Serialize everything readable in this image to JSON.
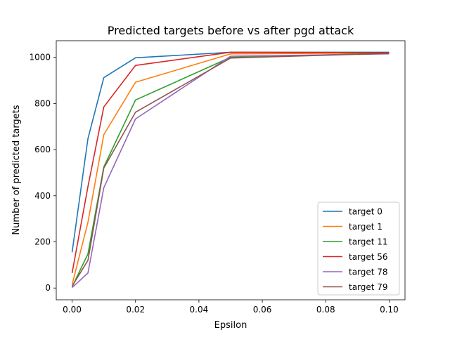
{
  "chart_data": {
    "type": "line",
    "title": "Predicted targets before vs after pgd attack",
    "xlabel": "Epsilon",
    "ylabel": "Number of predicted targets",
    "xlim": [
      -0.005,
      0.105
    ],
    "ylim": [
      -51,
      1072
    ],
    "xticks": [
      0.0,
      0.02,
      0.04,
      0.06,
      0.08,
      0.1
    ],
    "xtick_labels": [
      "0.00",
      "0.02",
      "0.04",
      "0.06",
      "0.08",
      "0.10"
    ],
    "yticks": [
      0,
      200,
      400,
      600,
      800,
      1000
    ],
    "ytick_labels": [
      "0",
      "200",
      "400",
      "600",
      "800",
      "1000"
    ],
    "grid": false,
    "legend_position": "bottom-right",
    "x": [
      0.0,
      0.005,
      0.01,
      0.02,
      0.05,
      0.1
    ],
    "series": [
      {
        "name": "target 0",
        "color": "#1f77b4",
        "values": [
          155,
          648,
          912,
          998,
          1022,
          1022
        ]
      },
      {
        "name": "target 1",
        "color": "#ff7f0e",
        "values": [
          15,
          285,
          665,
          892,
          1015,
          1019
        ]
      },
      {
        "name": "target 11",
        "color": "#2ca02c",
        "values": [
          5,
          148,
          525,
          815,
          1000,
          1018
        ]
      },
      {
        "name": "target 56",
        "color": "#d62728",
        "values": [
          65,
          440,
          785,
          965,
          1022,
          1020
        ]
      },
      {
        "name": "target 78",
        "color": "#9467bd",
        "values": [
          2,
          65,
          435,
          733,
          1005,
          1015
        ]
      },
      {
        "name": "target 79",
        "color": "#8c564b",
        "values": [
          8,
          120,
          520,
          762,
          997,
          1017
        ]
      }
    ]
  }
}
